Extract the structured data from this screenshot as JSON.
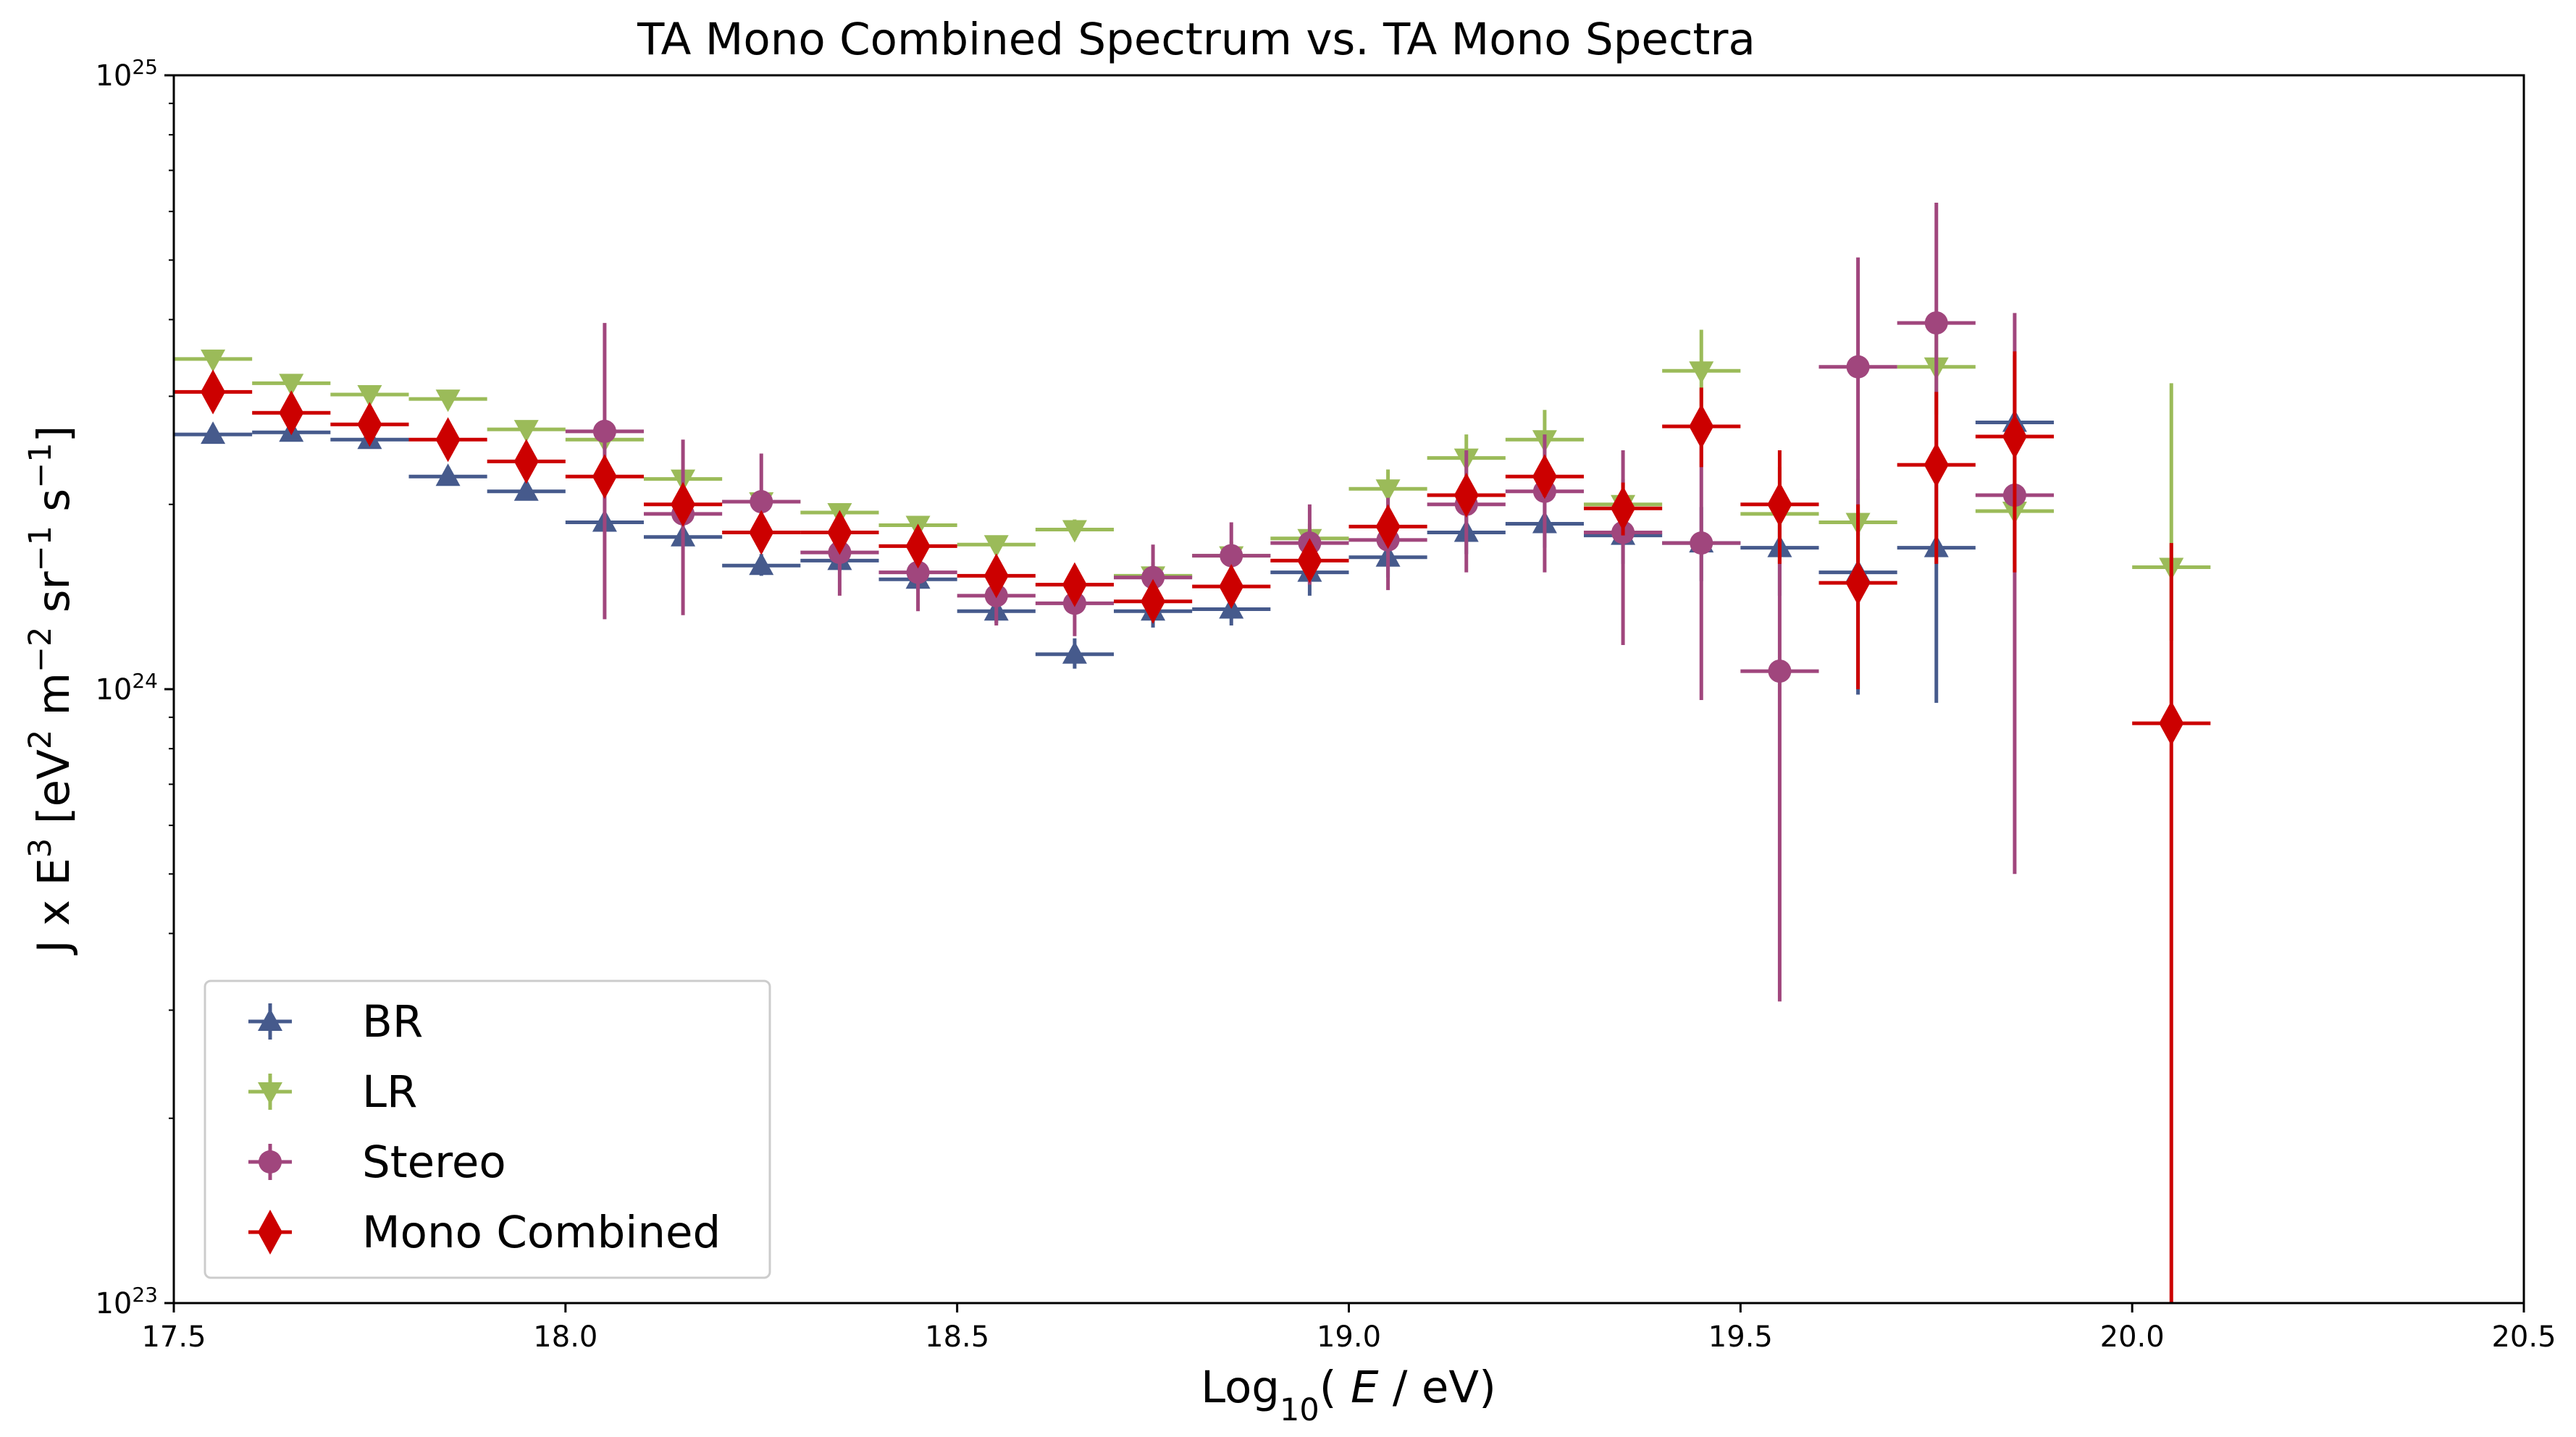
{
  "chart_data": {
    "type": "scatter",
    "title": "TA Mono Combined Spectrum vs. TA Mono Spectra",
    "xlabel": {
      "prefix": "Log",
      "sub": "10",
      "mid": "( ",
      "var": "E",
      "suffix": " / eV)"
    },
    "ylabel": {
      "a": "J x E",
      "a_sup": "3",
      "b": " [eV",
      "b_sup": "2",
      "c": " m",
      "c_sup": "−2",
      "d": " sr",
      "d_sup": "−1",
      "e": " s",
      "e_sup": "−1",
      "f": "]"
    },
    "xlim": [
      17.5,
      20.5
    ],
    "ylim": [
      1e+23,
      1e+25
    ],
    "yscale": "log",
    "grid": false,
    "legend_position": "bottom-left",
    "x_ticks": [
      {
        "value": 17.5,
        "label": "17.5"
      },
      {
        "value": 18.0,
        "label": "18.0"
      },
      {
        "value": 18.5,
        "label": "18.5"
      },
      {
        "value": 19.0,
        "label": "19.0"
      },
      {
        "value": 19.5,
        "label": "19.5"
      },
      {
        "value": 20.0,
        "label": "20.0"
      },
      {
        "value": 20.5,
        "label": "20.5"
      }
    ],
    "y_ticks": [
      {
        "value": 1e+23,
        "base": "10",
        "exp": "23"
      },
      {
        "value": 1e+24,
        "base": "10",
        "exp": "24"
      },
      {
        "value": 1e+25,
        "base": "10",
        "exp": "25"
      }
    ],
    "bin_half_width": 0.05,
    "series": [
      {
        "name": "BR",
        "color": "#465a8c",
        "marker": "triangle-up",
        "points": [
          {
            "x": 17.55,
            "y": 2.6e+24,
            "lo": 2.53e+24,
            "hi": 2.68e+24
          },
          {
            "x": 17.65,
            "y": 2.62e+24,
            "lo": 2.55e+24,
            "hi": 2.7e+24
          },
          {
            "x": 17.75,
            "y": 2.55e+24,
            "lo": 2.48e+24,
            "hi": 2.62e+24
          },
          {
            "x": 17.85,
            "y": 2.22e+24,
            "lo": 2.16e+24,
            "hi": 2.29e+24
          },
          {
            "x": 17.95,
            "y": 2.1e+24,
            "lo": 2.04e+24,
            "hi": 2.17e+24
          },
          {
            "x": 18.05,
            "y": 1.87e+24,
            "lo": 1.81e+24,
            "hi": 1.94e+24
          },
          {
            "x": 18.15,
            "y": 1.77e+24,
            "lo": 1.71e+24,
            "hi": 1.84e+24
          },
          {
            "x": 18.25,
            "y": 1.59e+24,
            "lo": 1.53e+24,
            "hi": 1.66e+24
          },
          {
            "x": 18.35,
            "y": 1.62e+24,
            "lo": 1.56e+24,
            "hi": 1.69e+24
          },
          {
            "x": 18.45,
            "y": 1.51e+24,
            "lo": 1.45e+24,
            "hi": 1.58e+24
          },
          {
            "x": 18.55,
            "y": 1.34e+24,
            "lo": 1.28e+24,
            "hi": 1.41e+24
          },
          {
            "x": 18.65,
            "y": 1.14e+24,
            "lo": 1.08e+24,
            "hi": 1.21e+24
          },
          {
            "x": 18.75,
            "y": 1.34e+24,
            "lo": 1.26e+24,
            "hi": 1.43e+24
          },
          {
            "x": 18.85,
            "y": 1.35e+24,
            "lo": 1.27e+24,
            "hi": 1.44e+24
          },
          {
            "x": 18.95,
            "y": 1.55e+24,
            "lo": 1.42e+24,
            "hi": 1.69e+24
          },
          {
            "x": 19.05,
            "y": 1.64e+24,
            "lo": 1.52e+24,
            "hi": 1.77e+24
          },
          {
            "x": 19.15,
            "y": 1.8e+24,
            "lo": 1.66e+24,
            "hi": 1.95e+24
          },
          {
            "x": 19.25,
            "y": 1.86e+24,
            "lo": 1.7e+24,
            "hi": 2.03e+24
          },
          {
            "x": 19.35,
            "y": 1.78e+24,
            "lo": 1.6e+24,
            "hi": 1.98e+24
          },
          {
            "x": 19.45,
            "y": 1.73e+24,
            "lo": 1.5e+24,
            "hi": 1.98e+24
          },
          {
            "x": 19.55,
            "y": 1.7e+24,
            "lo": 1.42e+24,
            "hi": 2.03e+24
          },
          {
            "x": 19.65,
            "y": 1.55e+24,
            "lo": 9.8e+23,
            "hi": 1.95e+24
          },
          {
            "x": 19.75,
            "y": 1.7e+24,
            "lo": 9.5e+23,
            "hi": 2.3e+24
          },
          {
            "x": 19.85,
            "y": 2.72e+24,
            "lo": 1.55e+24,
            "hi": 3.5e+24
          }
        ]
      },
      {
        "name": "LR",
        "color": "#9bbb59",
        "marker": "triangle-down",
        "points": [
          {
            "x": 17.55,
            "y": 3.45e+24,
            "lo": 3.36e+24,
            "hi": 3.55e+24
          },
          {
            "x": 17.65,
            "y": 3.15e+24,
            "lo": 3.07e+24,
            "hi": 3.24e+24
          },
          {
            "x": 17.75,
            "y": 3.02e+24,
            "lo": 2.94e+24,
            "hi": 3.1e+24
          },
          {
            "x": 17.85,
            "y": 2.97e+24,
            "lo": 2.89e+24,
            "hi": 3.05e+24
          },
          {
            "x": 17.95,
            "y": 2.65e+24,
            "lo": 2.58e+24,
            "hi": 2.72e+24
          },
          {
            "x": 18.05,
            "y": 2.55e+24,
            "lo": 2.48e+24,
            "hi": 2.62e+24
          },
          {
            "x": 18.15,
            "y": 2.2e+24,
            "lo": 2.14e+24,
            "hi": 2.26e+24
          },
          {
            "x": 18.25,
            "y": 2.02e+24,
            "lo": 1.96e+24,
            "hi": 2.08e+24
          },
          {
            "x": 18.35,
            "y": 1.94e+24,
            "lo": 1.88e+24,
            "hi": 2e+24
          },
          {
            "x": 18.45,
            "y": 1.85e+24,
            "lo": 1.79e+24,
            "hi": 1.91e+24
          },
          {
            "x": 18.55,
            "y": 1.72e+24,
            "lo": 1.66e+24,
            "hi": 1.78e+24
          },
          {
            "x": 18.65,
            "y": 1.82e+24,
            "lo": 1.75e+24,
            "hi": 1.89e+24
          },
          {
            "x": 18.75,
            "y": 1.53e+24,
            "lo": 1.45e+24,
            "hi": 1.61e+24
          },
          {
            "x": 18.85,
            "y": 1.65e+24,
            "lo": 1.56e+24,
            "hi": 1.74e+24
          },
          {
            "x": 18.95,
            "y": 1.76e+24,
            "lo": 1.66e+24,
            "hi": 1.86e+24
          },
          {
            "x": 19.05,
            "y": 2.12e+24,
            "lo": 1.98e+24,
            "hi": 2.28e+24
          },
          {
            "x": 19.15,
            "y": 2.38e+24,
            "lo": 2.2e+24,
            "hi": 2.6e+24
          },
          {
            "x": 19.25,
            "y": 2.55e+24,
            "lo": 2.3e+24,
            "hi": 2.85e+24
          },
          {
            "x": 19.35,
            "y": 2e+24,
            "lo": 1.8e+24,
            "hi": 2.2e+24
          },
          {
            "x": 19.45,
            "y": 3.3e+24,
            "lo": 2.85e+24,
            "hi": 3.85e+24
          },
          {
            "x": 19.55,
            "y": 1.93e+24,
            "lo": 1.6e+24,
            "hi": 2.3e+24
          },
          {
            "x": 19.65,
            "y": 1.87e+24,
            "lo": 1.55e+24,
            "hi": 2.2e+24
          },
          {
            "x": 19.75,
            "y": 3.35e+24,
            "lo": 2.8e+24,
            "hi": 3.9e+24
          },
          {
            "x": 19.85,
            "y": 1.95e+24,
            "lo": 1.6e+24,
            "hi": 2.4e+24
          },
          {
            "x": 20.05,
            "y": 1.58e+24,
            "lo": 1.2e+24,
            "hi": 3.15e+24
          }
        ]
      },
      {
        "name": "Stereo",
        "color": "#a0467d",
        "marker": "circle",
        "points": [
          {
            "x": 18.05,
            "y": 2.63e+24,
            "lo": 1.3e+24,
            "hi": 3.95e+24
          },
          {
            "x": 18.15,
            "y": 1.93e+24,
            "lo": 1.32e+24,
            "hi": 2.55e+24
          },
          {
            "x": 18.25,
            "y": 2.02e+24,
            "lo": 1.67e+24,
            "hi": 2.42e+24
          },
          {
            "x": 18.35,
            "y": 1.67e+24,
            "lo": 1.42e+24,
            "hi": 1.93e+24
          },
          {
            "x": 18.45,
            "y": 1.55e+24,
            "lo": 1.34e+24,
            "hi": 1.77e+24
          },
          {
            "x": 18.55,
            "y": 1.42e+24,
            "lo": 1.27e+24,
            "hi": 1.58e+24
          },
          {
            "x": 18.65,
            "y": 1.38e+24,
            "lo": 1.22e+24,
            "hi": 1.55e+24
          },
          {
            "x": 18.75,
            "y": 1.52e+24,
            "lo": 1.3e+24,
            "hi": 1.72e+24
          },
          {
            "x": 18.85,
            "y": 1.65e+24,
            "lo": 1.45e+24,
            "hi": 1.87e+24
          },
          {
            "x": 18.95,
            "y": 1.73e+24,
            "lo": 1.48e+24,
            "hi": 2e+24
          },
          {
            "x": 19.05,
            "y": 1.75e+24,
            "lo": 1.45e+24,
            "hi": 2.05e+24
          },
          {
            "x": 19.15,
            "y": 2e+24,
            "lo": 1.55e+24,
            "hi": 2.45e+24
          },
          {
            "x": 19.25,
            "y": 2.1e+24,
            "lo": 1.55e+24,
            "hi": 2.6e+24
          },
          {
            "x": 19.35,
            "y": 1.8e+24,
            "lo": 1.18e+24,
            "hi": 2.45e+24
          },
          {
            "x": 19.45,
            "y": 1.73e+24,
            "lo": 9.6e+23,
            "hi": 2.55e+24
          },
          {
            "x": 19.55,
            "y": 1.07e+24,
            "lo": 3.1e+23,
            "hi": 1.9e+24
          },
          {
            "x": 19.65,
            "y": 3.35e+24,
            "lo": 1.78e+24,
            "hi": 5.05e+24
          },
          {
            "x": 19.75,
            "y": 3.95e+24,
            "lo": 2.2e+24,
            "hi": 6.2e+24
          },
          {
            "x": 19.85,
            "y": 2.07e+24,
            "lo": 5e+23,
            "hi": 4.1e+24
          }
        ]
      },
      {
        "name": "Mono Combined",
        "color": "#cc0000",
        "marker": "diamond",
        "points": [
          {
            "x": 17.55,
            "y": 3.05e+24,
            "lo": 2.92e+24,
            "hi": 3.19e+24
          },
          {
            "x": 17.65,
            "y": 2.82e+24,
            "lo": 2.7e+24,
            "hi": 2.95e+24
          },
          {
            "x": 17.75,
            "y": 2.7e+24,
            "lo": 2.59e+24,
            "hi": 2.82e+24
          },
          {
            "x": 17.85,
            "y": 2.55e+24,
            "lo": 2.44e+24,
            "hi": 2.66e+24
          },
          {
            "x": 17.95,
            "y": 2.35e+24,
            "lo": 2.25e+24,
            "hi": 2.45e+24
          },
          {
            "x": 18.05,
            "y": 2.22e+24,
            "lo": 2.12e+24,
            "hi": 2.32e+24
          },
          {
            "x": 18.15,
            "y": 2e+24,
            "lo": 1.91e+24,
            "hi": 2.09e+24
          },
          {
            "x": 18.25,
            "y": 1.8e+24,
            "lo": 1.72e+24,
            "hi": 1.88e+24
          },
          {
            "x": 18.35,
            "y": 1.8e+24,
            "lo": 1.72e+24,
            "hi": 1.88e+24
          },
          {
            "x": 18.45,
            "y": 1.71e+24,
            "lo": 1.63e+24,
            "hi": 1.79e+24
          },
          {
            "x": 18.55,
            "y": 1.53e+24,
            "lo": 1.46e+24,
            "hi": 1.6e+24
          },
          {
            "x": 18.65,
            "y": 1.48e+24,
            "lo": 1.41e+24,
            "hi": 1.55e+24
          },
          {
            "x": 18.75,
            "y": 1.39e+24,
            "lo": 1.31e+24,
            "hi": 1.47e+24
          },
          {
            "x": 18.85,
            "y": 1.47e+24,
            "lo": 1.39e+24,
            "hi": 1.55e+24
          },
          {
            "x": 18.95,
            "y": 1.62e+24,
            "lo": 1.53e+24,
            "hi": 1.71e+24
          },
          {
            "x": 19.05,
            "y": 1.84e+24,
            "lo": 1.73e+24,
            "hi": 1.95e+24
          },
          {
            "x": 19.15,
            "y": 2.07e+24,
            "lo": 1.94e+24,
            "hi": 2.2e+24
          },
          {
            "x": 19.25,
            "y": 2.22e+24,
            "lo": 2.06e+24,
            "hi": 2.38e+24
          },
          {
            "x": 19.35,
            "y": 1.97e+24,
            "lo": 1.78e+24,
            "hi": 2.17e+24
          },
          {
            "x": 19.45,
            "y": 2.68e+24,
            "lo": 2.3e+24,
            "hi": 3.1e+24
          },
          {
            "x": 19.55,
            "y": 2e+24,
            "lo": 1.6e+24,
            "hi": 2.45e+24
          },
          {
            "x": 19.65,
            "y": 1.49e+24,
            "lo": 1e+24,
            "hi": 2e+24
          },
          {
            "x": 19.75,
            "y": 2.32e+24,
            "lo": 1.6e+24,
            "hi": 3.05e+24
          },
          {
            "x": 19.85,
            "y": 2.58e+24,
            "lo": 1.55e+24,
            "hi": 3.55e+24
          },
          {
            "x": 20.05,
            "y": 8.8e+23,
            "lo": 1e+23,
            "hi": 1.73e+24
          }
        ]
      }
    ]
  }
}
